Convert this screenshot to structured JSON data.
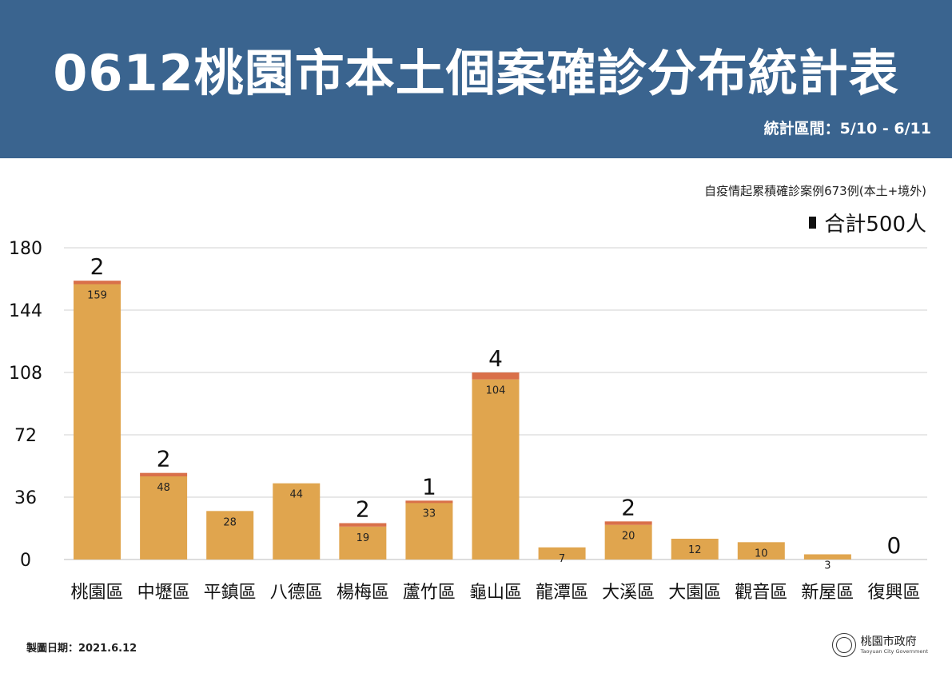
{
  "header": {
    "title": "0612桃園市本土個案確診分布統計表",
    "period": "統計區間：5/10 - 6/11"
  },
  "note": "自疫情起累積確診案例673例(本土+境外)",
  "total_label": "合計500人",
  "footer": {
    "date": "製圖日期：2021.6.12",
    "gov_name": "桃園市政府",
    "gov_en": "Taoyuan City Government"
  },
  "colors": {
    "header_bg": "#3a648f",
    "bar_main": "#e0a54e",
    "bar_top": "#d9704a",
    "grid": "#d0d0d0"
  },
  "chart_data": {
    "type": "bar",
    "stacked": true,
    "categories": [
      "桃園區",
      "中壢區",
      "平鎮區",
      "八德區",
      "楊梅區",
      "蘆竹區",
      "龜山區",
      "龍潭區",
      "大溪區",
      "大園區",
      "觀音區",
      "新屋區",
      "復興區"
    ],
    "series": [
      {
        "values": [
          159,
          48,
          28,
          44,
          19,
          33,
          104,
          7,
          20,
          12,
          10,
          3,
          0
        ]
      },
      {
        "values": [
          2,
          2,
          0,
          0,
          2,
          1,
          4,
          0,
          2,
          0,
          0,
          0,
          0
        ]
      }
    ],
    "top_labels": [
      "2",
      "2",
      "",
      "",
      "2",
      "1",
      "4",
      "",
      "2",
      "",
      "",
      "",
      "0"
    ],
    "y_ticks": [
      0,
      36,
      72,
      108,
      144,
      180
    ],
    "ylim": [
      0,
      180
    ],
    "grid": true
  }
}
